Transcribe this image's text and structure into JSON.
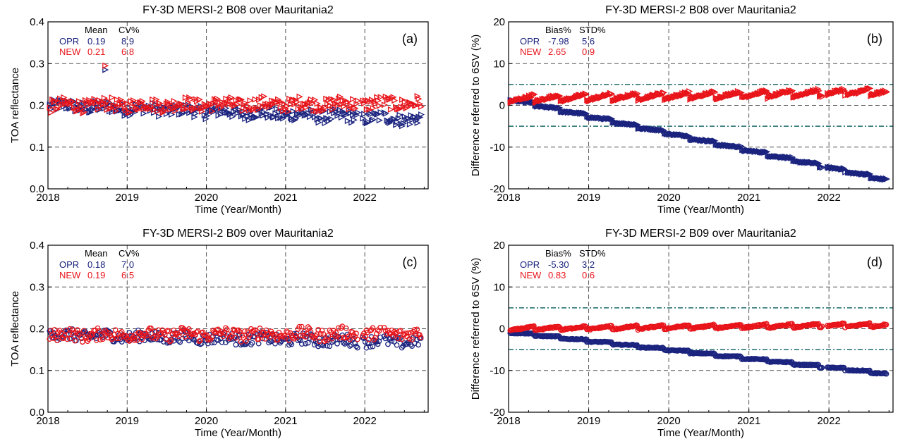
{
  "colors": {
    "opr": "#1a237e",
    "new": "#e8141a",
    "threshold": "#1b6b6b",
    "grid": "#555555",
    "axis": "#000000"
  },
  "chart_data": [
    {
      "panel": "(a)",
      "type": "scatter",
      "title": "FY-3D MERSI-2 B08 over Mauritania2",
      "xlabel": "Time (Year/Month)",
      "ylabel": "TOA reflectance",
      "xlim": [
        2018.0,
        2022.8
      ],
      "ylim": [
        0.0,
        0.4
      ],
      "xticks": [
        "2018",
        "2019",
        "2020",
        "2021",
        "2022"
      ],
      "yticks": [
        "0.0",
        "0.1",
        "0.2",
        "0.3",
        "0.4"
      ],
      "marker": "triangle",
      "stats_header": [
        "Mean",
        "CV%"
      ],
      "stats": [
        {
          "name": "OPR",
          "v1": "0.19",
          "v2": "8.9"
        },
        {
          "name": "NEW",
          "v1": "0.21",
          "v2": "6.8"
        }
      ],
      "series": [
        {
          "name": "OPR",
          "start": 0.2,
          "end": 0.166,
          "spread": 0.03,
          "outliers": [
            [
              2018.72,
              0.285
            ]
          ]
        },
        {
          "name": "NEW",
          "start": 0.2,
          "end": 0.205,
          "spread": 0.032,
          "outliers": [
            [
              2018.72,
              0.295
            ]
          ]
        }
      ]
    },
    {
      "panel": "(b)",
      "type": "scatter",
      "title": "FY-3D MERSI-2 B08 over Mauritania2",
      "xlabel": "Time (Year/Month)",
      "ylabel": "Difference referred to 6SV (%)",
      "xlim": [
        2018.0,
        2022.8
      ],
      "ylim": [
        -20,
        20
      ],
      "xticks": [
        "2018",
        "2019",
        "2020",
        "2021",
        "2022"
      ],
      "yticks": [
        "-20",
        "-10",
        "0",
        "10",
        "20"
      ],
      "marker": "triangle",
      "thresholds": [
        5,
        -5
      ],
      "stats_header": [
        "Bias%",
        "STD%"
      ],
      "stats": [
        {
          "name": "OPR",
          "v1": "-7.98",
          "v2": "5.6"
        },
        {
          "name": "NEW",
          "v1": "2.65",
          "v2": "0.9"
        }
      ],
      "series": [
        {
          "name": "OPR",
          "start": 1.5,
          "end": -17.8,
          "spread": 0.8,
          "outliers": []
        },
        {
          "name": "NEW",
          "start": 1.5,
          "end": 3.2,
          "spread": 1.6,
          "outliers": []
        }
      ]
    },
    {
      "panel": "(c)",
      "type": "scatter",
      "title": "FY-3D MERSI-2 B09 over Mauritania2",
      "xlabel": "Time (Year/Month)",
      "ylabel": "TOA reflectance",
      "xlim": [
        2018.0,
        2022.8
      ],
      "ylim": [
        0.0,
        0.4
      ],
      "xticks": [
        "2018",
        "2019",
        "2020",
        "2021",
        "2022"
      ],
      "yticks": [
        "0.0",
        "0.1",
        "0.2",
        "0.3",
        "0.4"
      ],
      "marker": "circle",
      "stats_header": [
        "Mean",
        "CV%"
      ],
      "stats": [
        {
          "name": "OPR",
          "v1": "0.18",
          "v2": "7.0"
        },
        {
          "name": "NEW",
          "v1": "0.19",
          "v2": "6.5"
        }
      ],
      "series": [
        {
          "name": "OPR",
          "start": 0.185,
          "end": 0.168,
          "spread": 0.028,
          "outliers": []
        },
        {
          "name": "NEW",
          "start": 0.185,
          "end": 0.188,
          "spread": 0.03,
          "outliers": []
        }
      ]
    },
    {
      "panel": "(d)",
      "type": "scatter",
      "title": "FY-3D MERSI-2 B09 over Mauritania2",
      "xlabel": "Time (Year/Month)",
      "ylabel": "Difference referred to 6SV (%)",
      "xlim": [
        2018.0,
        2022.8
      ],
      "ylim": [
        -20,
        20
      ],
      "xticks": [
        "2018",
        "2019",
        "2020",
        "2021",
        "2022"
      ],
      "yticks": [
        "-20",
        "-10",
        "0",
        "10",
        "20"
      ],
      "marker": "circle",
      "thresholds": [
        5,
        -5
      ],
      "stats_header": [
        "Bias%",
        "STD%"
      ],
      "stats": [
        {
          "name": "OPR",
          "v1": "-5.30",
          "v2": "3.2"
        },
        {
          "name": "NEW",
          "v1": "0.83",
          "v2": "0.6"
        }
      ],
      "series": [
        {
          "name": "OPR",
          "start": -0.8,
          "end": -10.8,
          "spread": 0.6,
          "outliers": []
        },
        {
          "name": "NEW",
          "start": 0.0,
          "end": 0.9,
          "spread": 0.9,
          "outliers": []
        }
      ]
    }
  ]
}
